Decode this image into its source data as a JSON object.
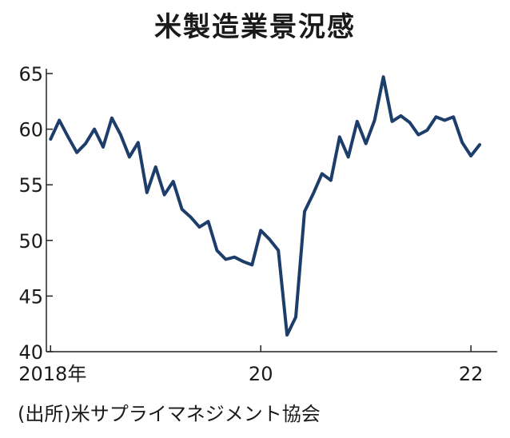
{
  "chart_data": {
    "type": "line",
    "title": "米製造業景況感",
    "source": "(出所)米サプライマネジメント協会",
    "xlabel": "",
    "ylabel": "",
    "ylim": [
      40,
      65
    ],
    "yticks": [
      40,
      45,
      50,
      55,
      60,
      65
    ],
    "xticks": [
      {
        "x": 2018.0,
        "label": "2018年"
      },
      {
        "x": 2020.0,
        "label": "20"
      },
      {
        "x": 2022.0,
        "label": "22"
      }
    ],
    "xlim": [
      2017.96,
      2022.25
    ],
    "line_color": "#1d3d6b",
    "grid": false,
    "series": [
      {
        "x": [
          2018.0,
          2018.083,
          2018.167,
          2018.25,
          2018.333,
          2018.417,
          2018.5,
          2018.583,
          2018.667,
          2018.75,
          2018.833,
          2018.917,
          2019.0,
          2019.083,
          2019.167,
          2019.25,
          2019.333,
          2019.417,
          2019.5,
          2019.583,
          2019.667,
          2019.75,
          2019.833,
          2019.917,
          2020.0,
          2020.083,
          2020.167,
          2020.25,
          2020.333,
          2020.417,
          2020.5,
          2020.583,
          2020.667,
          2020.75,
          2020.833,
          2020.917,
          2021.0,
          2021.083,
          2021.167,
          2021.25,
          2021.333,
          2021.417,
          2021.5,
          2021.583,
          2021.667,
          2021.75,
          2021.833,
          2021.917,
          2022.0,
          2022.083
        ],
        "values": [
          59.1,
          60.8,
          59.3,
          57.9,
          58.7,
          60.0,
          58.4,
          61.0,
          59.5,
          57.5,
          58.8,
          54.3,
          56.6,
          54.1,
          55.3,
          52.8,
          52.1,
          51.2,
          51.7,
          49.1,
          48.3,
          48.5,
          48.1,
          47.8,
          50.9,
          50.1,
          49.1,
          41.5,
          43.1,
          52.6,
          54.2,
          56.0,
          55.4,
          59.3,
          57.5,
          60.7,
          58.7,
          60.8,
          64.7,
          60.7,
          61.2,
          60.6,
          59.5,
          59.9,
          61.1,
          60.8,
          61.1,
          58.8,
          57.6,
          58.6
        ]
      }
    ]
  }
}
